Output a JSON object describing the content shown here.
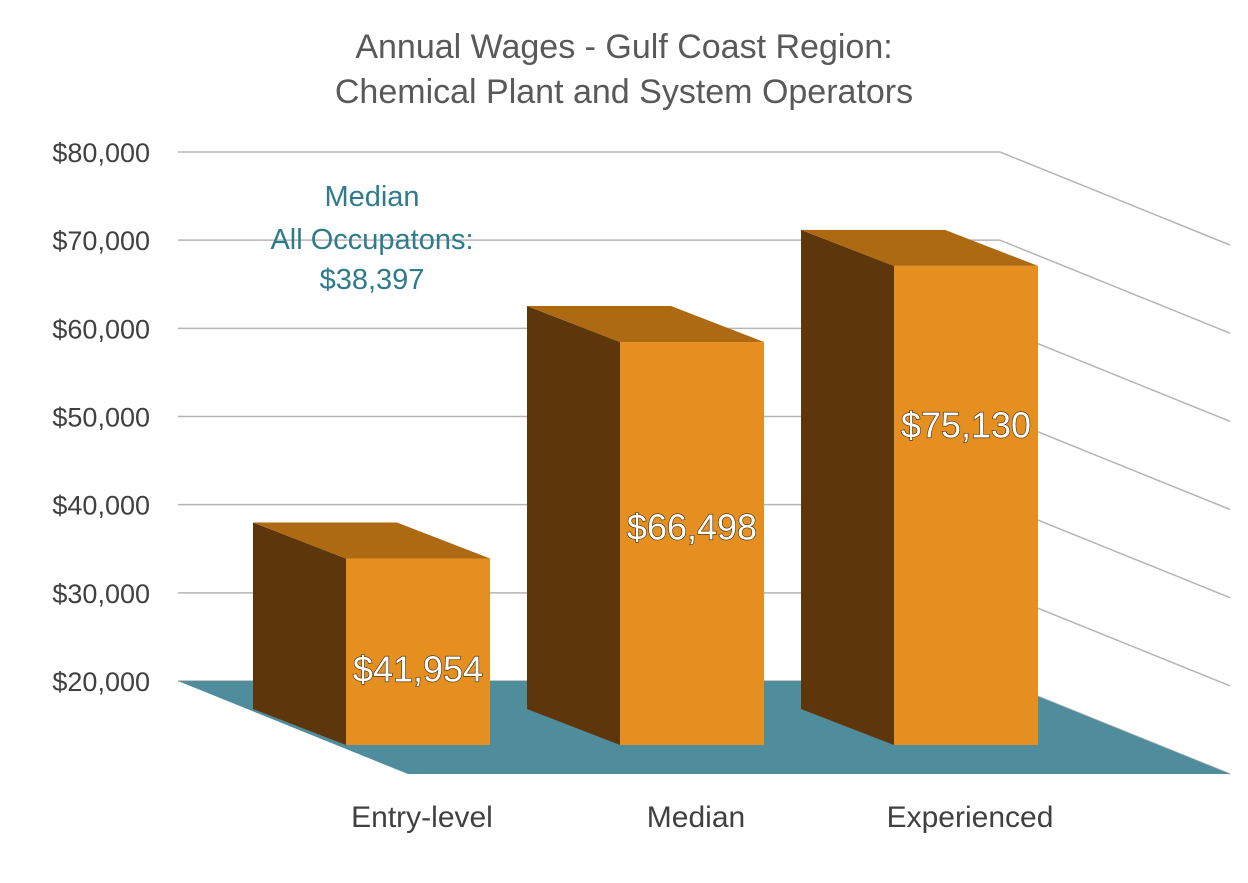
{
  "chart_data": {
    "type": "bar",
    "title": [
      "Annual Wages - Gulf Coast Region:",
      "Chemical Plant and System Operators"
    ],
    "categories": [
      "Entry-level",
      "Median",
      "Experienced"
    ],
    "values": [
      41954,
      66498,
      75130
    ],
    "data_labels": [
      "$41,954",
      "$66,498",
      "$75,130"
    ],
    "ylim": [
      20000,
      80000
    ],
    "yticks": [
      "$20,000",
      "$30,000",
      "$40,000",
      "$50,000",
      "$60,000",
      "$70,000",
      "$80,000"
    ],
    "grid": true,
    "annotation": [
      "Median",
      "All Occupatons:",
      "$38,397"
    ],
    "colors": {
      "bar_front": "#e48f1f",
      "bar_top": "#ad6a12",
      "bar_side": "#5e360c",
      "floor": "#4f8c9c",
      "annotation": "#2e7b8c"
    }
  }
}
